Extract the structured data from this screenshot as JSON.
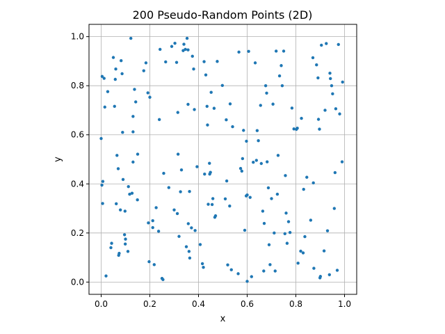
{
  "chart_data": {
    "type": "scatter",
    "title": "200 Pseudo-Random Points (2D)",
    "xlabel": "x",
    "ylabel": "y",
    "xlim": [
      -0.05,
      1.05
    ],
    "ylim": [
      -0.05,
      1.05
    ],
    "xticks": [
      0.0,
      0.2,
      0.4,
      0.6,
      0.8,
      1.0
    ],
    "yticks": [
      0.0,
      0.2,
      0.4,
      0.6,
      0.8,
      1.0
    ],
    "xtick_labels": [
      "0.0",
      "0.2",
      "0.4",
      "0.6",
      "0.8",
      "1.0"
    ],
    "ytick_labels": [
      "0.0",
      "0.2",
      "0.4",
      "0.6",
      "0.8",
      "1.0"
    ],
    "grid": true,
    "marker_color": "#1f77b4",
    "points": [
      [
        0.0,
        0.585
      ],
      [
        0.003,
        0.395
      ],
      [
        0.006,
        0.32
      ],
      [
        0.007,
        0.41
      ],
      [
        0.012,
        0.83
      ],
      [
        0.015,
        0.713
      ],
      [
        0.02,
        0.025
      ],
      [
        0.027,
        0.776
      ],
      [
        0.04,
        0.14
      ],
      [
        0.043,
        0.158
      ],
      [
        0.05,
        0.915
      ],
      [
        0.055,
        0.716
      ],
      [
        0.058,
        0.826
      ],
      [
        0.06,
        0.868
      ],
      [
        0.062,
        0.319
      ],
      [
        0.065,
        0.516
      ],
      [
        0.07,
        0.462
      ],
      [
        0.072,
        0.109
      ],
      [
        0.074,
        0.117
      ],
      [
        0.079,
        0.294
      ],
      [
        0.082,
        0.902
      ],
      [
        0.086,
        0.849
      ],
      [
        0.088,
        0.61
      ],
      [
        0.09,
        0.418
      ],
      [
        0.096,
        0.193
      ],
      [
        0.098,
        0.289
      ],
      [
        0.099,
        0.155
      ],
      [
        0.1,
        0.175
      ],
      [
        0.11,
        0.125
      ],
      [
        0.112,
        0.389
      ],
      [
        0.117,
        0.358
      ],
      [
        0.122,
        0.993
      ],
      [
        0.127,
        0.362
      ],
      [
        0.131,
        0.612
      ],
      [
        0.131,
        0.675
      ],
      [
        0.131,
        0.489
      ],
      [
        0.137,
        0.785
      ],
      [
        0.142,
        0.734
      ],
      [
        0.149,
        0.335
      ],
      [
        0.15,
        0.521
      ],
      [
        0.175,
        0.861
      ],
      [
        0.184,
        0.893
      ],
      [
        0.192,
        0.771
      ],
      [
        0.194,
        0.241
      ],
      [
        0.197,
        0.083
      ],
      [
        0.2,
        0.753
      ],
      [
        0.212,
        0.25
      ],
      [
        0.212,
        0.222
      ],
      [
        0.218,
        0.071
      ],
      [
        0.226,
        0.303
      ],
      [
        0.236,
        0.207
      ],
      [
        0.239,
        0.662
      ],
      [
        0.242,
        0.948
      ],
      [
        0.25,
        0.015
      ],
      [
        0.254,
        0.01
      ],
      [
        0.257,
        0.443
      ],
      [
        0.265,
        0.897
      ],
      [
        0.278,
        0.385
      ],
      [
        0.29,
        0.96
      ],
      [
        0.3,
        0.294
      ],
      [
        0.303,
        0.973
      ],
      [
        0.31,
        0.895
      ],
      [
        0.313,
        0.279
      ],
      [
        0.315,
        0.691
      ],
      [
        0.316,
        0.521
      ],
      [
        0.32,
        0.186
      ],
      [
        0.326,
        0.368
      ],
      [
        0.33,
        0.457
      ],
      [
        0.337,
        0.943
      ],
      [
        0.34,
        0.969
      ],
      [
        0.346,
        0.948
      ],
      [
        0.35,
        0.144
      ],
      [
        0.353,
        0.993
      ],
      [
        0.357,
        0.724
      ],
      [
        0.357,
        0.946
      ],
      [
        0.358,
        0.238
      ],
      [
        0.361,
        0.125
      ],
      [
        0.363,
        0.369
      ],
      [
        0.364,
        0.098
      ],
      [
        0.371,
        0.221
      ],
      [
        0.375,
        0.92
      ],
      [
        0.38,
        0.868
      ],
      [
        0.383,
        0.703
      ],
      [
        0.386,
        0.21
      ],
      [
        0.394,
        0.47
      ],
      [
        0.407,
        0.153
      ],
      [
        0.416,
        0.075
      ],
      [
        0.42,
        0.06
      ],
      [
        0.423,
        0.898
      ],
      [
        0.425,
        0.44
      ],
      [
        0.43,
        0.844
      ],
      [
        0.435,
        0.716
      ],
      [
        0.437,
        0.64
      ],
      [
        0.44,
        0.317
      ],
      [
        0.445,
        0.484
      ],
      [
        0.446,
        0.44
      ],
      [
        0.449,
        0.447
      ],
      [
        0.452,
        0.773
      ],
      [
        0.456,
        0.316
      ],
      [
        0.459,
        0.34
      ],
      [
        0.464,
        0.708
      ],
      [
        0.467,
        0.264
      ],
      [
        0.47,
        0.27
      ],
      [
        0.477,
        0.899
      ],
      [
        0.498,
        0.801
      ],
      [
        0.51,
        0.339
      ],
      [
        0.514,
        0.661
      ],
      [
        0.516,
        0.412
      ],
      [
        0.52,
        0.07
      ],
      [
        0.528,
        0.31
      ],
      [
        0.53,
        0.726
      ],
      [
        0.535,
        0.05
      ],
      [
        0.54,
        0.633
      ],
      [
        0.563,
        0.034
      ],
      [
        0.566,
        0.937
      ],
      [
        0.573,
        0.463
      ],
      [
        0.578,
        0.452
      ],
      [
        0.581,
        0.503
      ],
      [
        0.585,
        0.618
      ],
      [
        0.59,
        0.211
      ],
      [
        0.596,
        0.351
      ],
      [
        0.597,
        0.574
      ],
      [
        0.6,
        0.003
      ],
      [
        0.606,
        0.94
      ],
      [
        0.612,
        0.345
      ],
      [
        0.618,
        0.022
      ],
      [
        0.625,
        0.488
      ],
      [
        0.633,
        0.893
      ],
      [
        0.638,
        0.496
      ],
      [
        0.641,
        0.617
      ],
      [
        0.646,
        0.576
      ],
      [
        0.655,
        0.72
      ],
      [
        0.658,
        0.483
      ],
      [
        0.664,
        0.289
      ],
      [
        0.668,
        0.045
      ],
      [
        0.67,
        0.239
      ],
      [
        0.676,
        0.8
      ],
      [
        0.68,
        0.77
      ],
      [
        0.682,
        0.49
      ],
      [
        0.687,
        0.384
      ],
      [
        0.69,
        0.152
      ],
      [
        0.694,
        0.071
      ],
      [
        0.7,
        0.34
      ],
      [
        0.706,
        0.725
      ],
      [
        0.711,
        0.2
      ],
      [
        0.715,
        0.045
      ],
      [
        0.719,
        0.941
      ],
      [
        0.724,
        0.358
      ],
      [
        0.727,
        0.516
      ],
      [
        0.733,
        0.84
      ],
      [
        0.74,
        0.882
      ],
      [
        0.744,
        0.8
      ],
      [
        0.75,
        0.941
      ],
      [
        0.755,
        0.197
      ],
      [
        0.757,
        0.434
      ],
      [
        0.76,
        0.281
      ],
      [
        0.764,
        0.158
      ],
      [
        0.77,
        0.246
      ],
      [
        0.776,
        0.202
      ],
      [
        0.784,
        0.709
      ],
      [
        0.792,
        0.624
      ],
      [
        0.802,
        0.622
      ],
      [
        0.806,
        0.627
      ],
      [
        0.809,
        0.077
      ],
      [
        0.82,
        0.126
      ],
      [
        0.823,
        0.667
      ],
      [
        0.83,
        0.119
      ],
      [
        0.832,
        0.378
      ],
      [
        0.837,
        0.185
      ],
      [
        0.845,
        0.427
      ],
      [
        0.861,
        0.252
      ],
      [
        0.87,
        0.914
      ],
      [
        0.872,
        0.404
      ],
      [
        0.874,
        0.056
      ],
      [
        0.885,
        0.885
      ],
      [
        0.891,
        0.832
      ],
      [
        0.893,
        0.663
      ],
      [
        0.897,
        0.623
      ],
      [
        0.899,
        0.017
      ],
      [
        0.901,
        0.023
      ],
      [
        0.905,
        0.965
      ],
      [
        0.916,
        0.127
      ],
      [
        0.92,
        0.7
      ],
      [
        0.925,
        0.972
      ],
      [
        0.93,
        0.209
      ],
      [
        0.938,
        0.03
      ],
      [
        0.94,
        0.851
      ],
      [
        0.942,
        0.829
      ],
      [
        0.947,
        0.8
      ],
      [
        0.951,
        0.767
      ],
      [
        0.958,
        0.3
      ],
      [
        0.961,
        0.446
      ],
      [
        0.964,
        0.706
      ],
      [
        0.97,
        0.048
      ],
      [
        0.975,
        0.968
      ],
      [
        0.98,
        0.685
      ],
      [
        0.99,
        0.49
      ],
      [
        0.992,
        0.815
      ],
      [
        0.004,
        0.838
      ],
      [
        0.6,
        0.355
      ]
    ]
  }
}
